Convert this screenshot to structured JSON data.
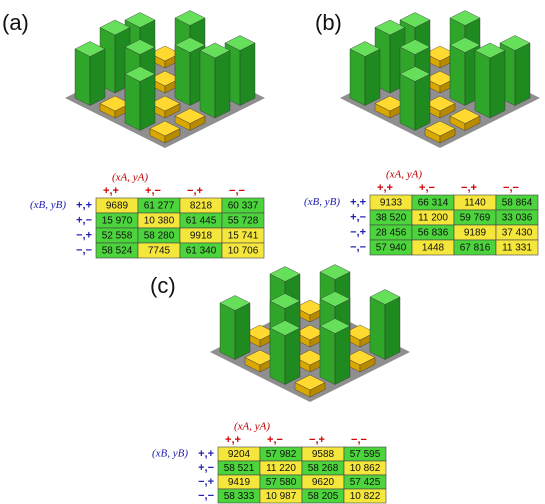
{
  "panels": [
    {
      "label": "(a)",
      "table": {
        "col_axis": "(xA, yA)",
        "row_axis": "(xB, yB)",
        "col_headers": [
          "+,+",
          "+,−",
          "−,+",
          "−,−"
        ],
        "row_headers": [
          "+,+",
          "+,−",
          "−,+",
          "−,−"
        ],
        "rows": [
          {
            "cells": [
              {
                "text": "9689",
                "color": "#f5e63c"
              },
              {
                "text": "61 277",
                "color": "#4cd43c"
              },
              {
                "text": "8218",
                "color": "#f5e63c"
              },
              {
                "text": "60 337",
                "color": "#4cd43c"
              }
            ]
          },
          {
            "cells": [
              {
                "text": "15 970",
                "color": "#4cd43c"
              },
              {
                "text": "10 380",
                "color": "#f5e63c"
              },
              {
                "text": "61 445",
                "color": "#4cd43c"
              },
              {
                "text": "55 728",
                "color": "#4cd43c"
              }
            ]
          },
          {
            "cells": [
              {
                "text": "52 558",
                "color": "#4cd43c"
              },
              {
                "text": "58 280",
                "color": "#4cd43c"
              },
              {
                "text": "9918",
                "color": "#f5e63c"
              },
              {
                "text": "15 741",
                "color": "#f5e63c"
              }
            ]
          },
          {
            "cells": [
              {
                "text": "58 524",
                "color": "#4cd43c"
              },
              {
                "text": "7745",
                "color": "#f5e63c"
              },
              {
                "text": "61 340",
                "color": "#4cd43c"
              },
              {
                "text": "10 706",
                "color": "#f5e63c"
              }
            ]
          }
        ]
      }
    },
    {
      "label": "(b)",
      "table": {
        "col_axis": "(xA, yA)",
        "row_axis": "(xB, yB)",
        "col_headers": [
          "+,+",
          "+,−",
          "−,+",
          "−,−"
        ],
        "row_headers": [
          "+,+",
          "+,−",
          "−,+",
          "−,−"
        ],
        "rows": [
          {
            "cells": [
              {
                "text": "9133",
                "color": "#f5e63c"
              },
              {
                "text": "66 314",
                "color": "#4cd43c"
              },
              {
                "text": "1140",
                "color": "#f5e63c"
              },
              {
                "text": "58 864",
                "color": "#4cd43c"
              }
            ]
          },
          {
            "cells": [
              {
                "text": "38 520",
                "color": "#4cd43c"
              },
              {
                "text": "11 200",
                "color": "#f5e63c"
              },
              {
                "text": "59 769",
                "color": "#4cd43c"
              },
              {
                "text": "33 036",
                "color": "#4cd43c"
              }
            ]
          },
          {
            "cells": [
              {
                "text": "28 456",
                "color": "#4cd43c"
              },
              {
                "text": "56 836",
                "color": "#4cd43c"
              },
              {
                "text": "9189",
                "color": "#f5e63c"
              },
              {
                "text": "37 430",
                "color": "#f5e63c"
              }
            ]
          },
          {
            "cells": [
              {
                "text": "57 940",
                "color": "#4cd43c"
              },
              {
                "text": "1448",
                "color": "#f5e63c"
              },
              {
                "text": "67 816",
                "color": "#4cd43c"
              },
              {
                "text": "11 331",
                "color": "#f5e63c"
              }
            ]
          }
        ]
      }
    },
    {
      "label": "(c)",
      "table": {
        "col_axis": "(xA, yA)",
        "row_axis": "(xB, yB)",
        "col_headers": [
          "+,+",
          "+,−",
          "−,+",
          "−,−"
        ],
        "row_headers": [
          "+,+",
          "+,−",
          "−,+",
          "−,−"
        ],
        "rows": [
          {
            "cells": [
              {
                "text": "9204",
                "color": "#f5e63c"
              },
              {
                "text": "57 982",
                "color": "#4cd43c"
              },
              {
                "text": "9588",
                "color": "#f5e63c"
              },
              {
                "text": "57 595",
                "color": "#4cd43c"
              }
            ]
          },
          {
            "cells": [
              {
                "text": "58 521",
                "color": "#4cd43c"
              },
              {
                "text": "11 220",
                "color": "#f5e63c"
              },
              {
                "text": "58 268",
                "color": "#4cd43c"
              },
              {
                "text": "10 862",
                "color": "#f5e63c"
              }
            ]
          },
          {
            "cells": [
              {
                "text": "9419",
                "color": "#f5e63c"
              },
              {
                "text": "57 580",
                "color": "#4cd43c"
              },
              {
                "text": "9620",
                "color": "#f5e63c"
              },
              {
                "text": "57 425",
                "color": "#4cd43c"
              }
            ]
          },
          {
            "cells": [
              {
                "text": "58 333",
                "color": "#4cd43c"
              },
              {
                "text": "10 987",
                "color": "#f5e63c"
              },
              {
                "text": "58 205",
                "color": "#4cd43c"
              },
              {
                "text": "10 822",
                "color": "#f5e63c"
              }
            ]
          }
        ]
      }
    }
  ]
}
